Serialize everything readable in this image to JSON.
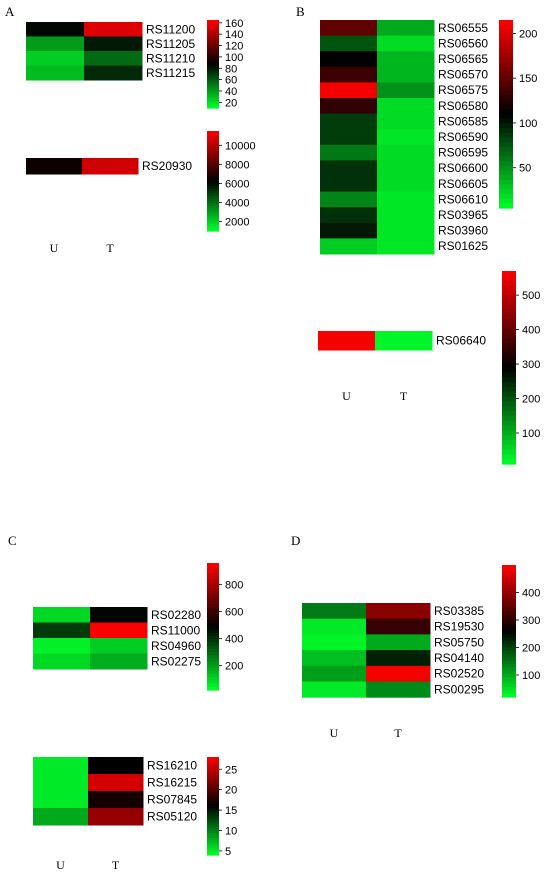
{
  "color_scale": {
    "low": "#00ff2a",
    "mid": "#000000",
    "high": "#ff0000"
  },
  "chart_data": [
    {
      "type": "heatmap",
      "panel": "A",
      "columns": [
        "U",
        "T"
      ],
      "rows": [
        "RS11200",
        "RS11205",
        "RS11210",
        "RS11215"
      ],
      "values": [
        [
          85,
          155
        ],
        [
          40,
          80
        ],
        [
          25,
          55
        ],
        [
          30,
          75
        ]
      ],
      "color_range": [
        10,
        165
      ],
      "ticks": [
        20,
        40,
        60,
        80,
        100,
        120,
        140,
        160
      ]
    },
    {
      "type": "heatmap",
      "panel": "A",
      "columns": [
        "U",
        "T"
      ],
      "rows": [
        "RS20930"
      ],
      "values": [
        [
          6500,
          10500
        ]
      ],
      "color_range": [
        1000,
        11500
      ],
      "ticks": [
        2000,
        4000,
        6000,
        8000,
        10000
      ]
    },
    {
      "type": "heatmap",
      "panel": "B",
      "columns": [
        "U",
        "T"
      ],
      "rows": [
        "RS06555",
        "RS06560",
        "RS06565",
        "RS06570",
        "RS06575",
        "RS06580",
        "RS06585",
        "RS06590",
        "RS06595",
        "RS06600",
        "RS06605",
        "RS06610",
        "RS03965",
        "RS03960",
        "RS01625"
      ],
      "values": [
        [
          150,
          40
        ],
        [
          75,
          20
        ],
        [
          110,
          35
        ],
        [
          135,
          35
        ],
        [
          210,
          50
        ],
        [
          130,
          20
        ],
        [
          85,
          20
        ],
        [
          85,
          15
        ],
        [
          60,
          20
        ],
        [
          90,
          20
        ],
        [
          90,
          20
        ],
        [
          55,
          15
        ],
        [
          90,
          15
        ],
        [
          100,
          15
        ],
        [
          25,
          15
        ]
      ],
      "color_range": [
        5,
        215
      ],
      "ticks": [
        50,
        100,
        150,
        200
      ]
    },
    {
      "type": "heatmap",
      "panel": "B",
      "columns": [
        "U",
        "T"
      ],
      "rows": [
        "RS06640"
      ],
      "values": [
        [
          560,
          20
        ]
      ],
      "color_range": [
        10,
        570
      ],
      "ticks": [
        100,
        200,
        300,
        400,
        500
      ]
    },
    {
      "type": "heatmap",
      "panel": "C",
      "columns": [
        "U",
        "T"
      ],
      "rows": [
        "RS02280",
        "RS11000",
        "RS04960",
        "RS02275"
      ],
      "values": [
        [
          90,
          480
        ],
        [
          380,
          950
        ],
        [
          45,
          110
        ],
        [
          90,
          170
        ]
      ],
      "color_range": [
        20,
        960
      ],
      "ticks": [
        200,
        400,
        600,
        800
      ]
    },
    {
      "type": "heatmap",
      "panel": "C",
      "columns": [
        "U",
        "T"
      ],
      "rows": [
        "RS16210",
        "RS16215",
        "RS07845",
        "RS05120"
      ],
      "values": [
        [
          5,
          16
        ],
        [
          5,
          26
        ],
        [
          5,
          17
        ],
        [
          8,
          23
        ]
      ],
      "color_range": [
        4,
        28
      ],
      "ticks": [
        5,
        10,
        15,
        20,
        25
      ]
    },
    {
      "type": "heatmap",
      "panel": "D",
      "columns": [
        "U",
        "T"
      ],
      "rows": [
        "RS03385",
        "RS19530",
        "RS05750",
        "RS04140",
        "RS02520",
        "RS00295"
      ],
      "values": [
        [
          145,
          390
        ],
        [
          40,
          310
        ],
        [
          30,
          100
        ],
        [
          80,
          230
        ],
        [
          110,
          490
        ],
        [
          40,
          130
        ]
      ],
      "color_range": [
        20,
        500
      ],
      "ticks": [
        100,
        200,
        300,
        400
      ]
    }
  ]
}
